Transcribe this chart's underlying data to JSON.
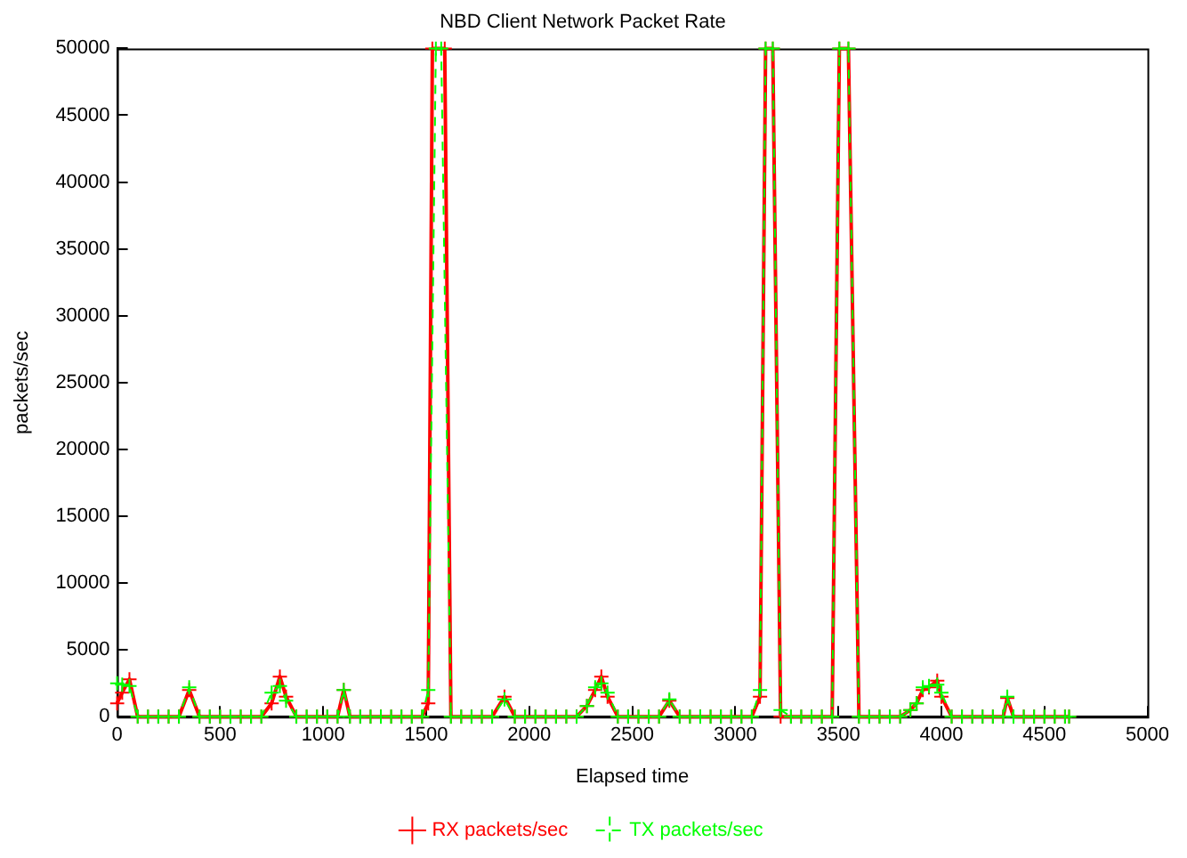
{
  "chart_data": {
    "type": "line",
    "title": "NBD Client Network Packet Rate",
    "xlabel": "Elapsed time",
    "ylabel": "packets/sec",
    "xlim": [
      0,
      5000
    ],
    "xticks": [
      0,
      500,
      1000,
      1500,
      2000,
      2500,
      3000,
      3500,
      4000,
      4500,
      5000
    ],
    "ylim": [
      0,
      50000
    ],
    "yticks": [
      0,
      5000,
      10000,
      15000,
      20000,
      25000,
      30000,
      35000,
      40000,
      45000,
      50000
    ],
    "grid": false,
    "legend": "bottom",
    "series": [
      {
        "name": "RX packets/sec",
        "color": "#ff0000",
        "marker": "cross",
        "line_style": "solid",
        "x": [
          0,
          25,
          60,
          100,
          150,
          200,
          250,
          300,
          350,
          400,
          450,
          500,
          550,
          600,
          650,
          700,
          750,
          790,
          820,
          870,
          920,
          970,
          1020,
          1070,
          1100,
          1130,
          1180,
          1230,
          1280,
          1330,
          1380,
          1430,
          1480,
          1510,
          1530,
          1590,
          1620,
          1670,
          1720,
          1770,
          1820,
          1880,
          1930,
          1980,
          2030,
          2080,
          2130,
          2180,
          2230,
          2280,
          2320,
          2350,
          2380,
          2430,
          2480,
          2530,
          2580,
          2630,
          2680,
          2730,
          2780,
          2830,
          2880,
          2930,
          2980,
          3030,
          3080,
          3120,
          3147,
          3182,
          3220,
          3270,
          3320,
          3370,
          3420,
          3470,
          3505,
          3549,
          3600,
          3650,
          3700,
          3750,
          3800,
          3850,
          3880,
          3910,
          3940,
          3980,
          4000,
          4050,
          4100,
          4150,
          4200,
          4250,
          4300,
          4320,
          4350,
          4400,
          4450,
          4500,
          4550,
          4600,
          4620
        ],
        "values": [
          1000,
          1800,
          2800,
          0,
          0,
          0,
          0,
          0,
          2000,
          0,
          0,
          0,
          0,
          0,
          0,
          0,
          1000,
          3000,
          1500,
          0,
          0,
          0,
          0,
          0,
          2000,
          0,
          0,
          0,
          0,
          0,
          0,
          0,
          0,
          1000,
          50000,
          50000,
          0,
          0,
          0,
          0,
          0,
          1500,
          0,
          0,
          0,
          0,
          0,
          0,
          0,
          800,
          2000,
          3000,
          1500,
          0,
          0,
          0,
          0,
          0,
          1200,
          0,
          0,
          0,
          0,
          0,
          0,
          0,
          0,
          1500,
          50000,
          50000,
          0,
          0,
          0,
          0,
          0,
          0,
          50000,
          50000,
          0,
          0,
          0,
          0,
          0,
          500,
          1000,
          2000,
          2200,
          2700,
          1500,
          0,
          0,
          0,
          0,
          0,
          0,
          1400,
          0,
          0,
          0,
          0,
          0,
          0,
          0
        ]
      },
      {
        "name": "TX packets/sec",
        "color": "#00ff00",
        "marker": "cross",
        "line_style": "dashed",
        "x": [
          0,
          25,
          60,
          100,
          150,
          200,
          250,
          300,
          350,
          400,
          450,
          500,
          550,
          600,
          650,
          700,
          750,
          790,
          820,
          870,
          920,
          970,
          1020,
          1070,
          1100,
          1130,
          1180,
          1230,
          1280,
          1330,
          1380,
          1430,
          1480,
          1510,
          1547,
          1573,
          1620,
          1670,
          1720,
          1770,
          1820,
          1880,
          1930,
          1980,
          2030,
          2080,
          2130,
          2180,
          2230,
          2280,
          2320,
          2350,
          2380,
          2430,
          2480,
          2530,
          2580,
          2630,
          2680,
          2730,
          2780,
          2830,
          2880,
          2930,
          2980,
          3030,
          3080,
          3120,
          3147,
          3182,
          3220,
          3270,
          3320,
          3370,
          3420,
          3470,
          3505,
          3549,
          3600,
          3650,
          3700,
          3750,
          3800,
          3850,
          3880,
          3910,
          3940,
          3980,
          4000,
          4050,
          4100,
          4150,
          4200,
          4250,
          4300,
          4320,
          4350,
          4400,
          4450,
          4500,
          4550,
          4600,
          4620
        ],
        "values": [
          2500,
          2400,
          2300,
          0,
          0,
          0,
          0,
          0,
          2200,
          0,
          0,
          0,
          0,
          0,
          0,
          0,
          1800,
          2300,
          1200,
          0,
          0,
          0,
          0,
          0,
          2000,
          0,
          0,
          0,
          0,
          0,
          0,
          0,
          0,
          2000,
          50000,
          50000,
          0,
          0,
          0,
          0,
          0,
          1300,
          0,
          0,
          0,
          0,
          0,
          0,
          0,
          800,
          2200,
          2500,
          1800,
          0,
          0,
          0,
          0,
          0,
          1300,
          0,
          0,
          0,
          0,
          0,
          0,
          0,
          0,
          2000,
          50000,
          50000,
          500,
          0,
          0,
          0,
          0,
          0,
          50000,
          50000,
          0,
          0,
          0,
          0,
          0,
          500,
          1000,
          2200,
          2300,
          2400,
          1800,
          0,
          0,
          0,
          0,
          0,
          0,
          1500,
          0,
          0,
          0,
          0,
          0,
          0,
          0
        ]
      }
    ]
  }
}
